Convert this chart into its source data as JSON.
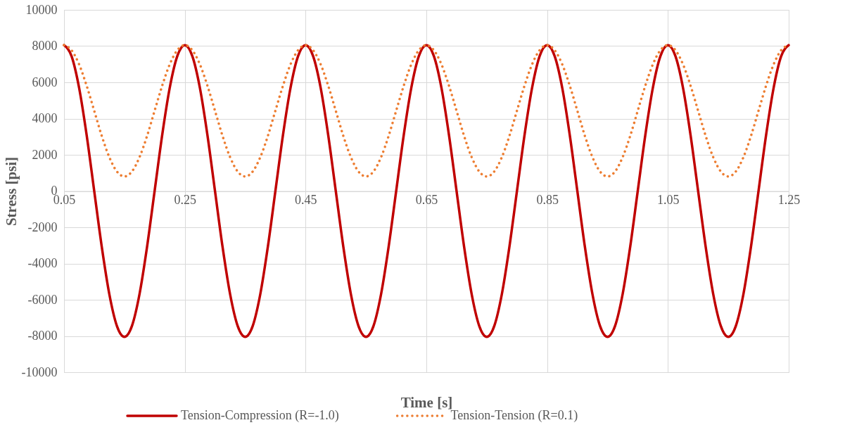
{
  "chart_data": {
    "type": "line",
    "xlabel": "Time [s]",
    "ylabel": "Stress [psi]",
    "x": [
      0.05,
      0.0625,
      0.075,
      0.0875,
      0.1,
      0.1125,
      0.125,
      0.1375,
      0.15,
      0.1625,
      0.175,
      0.1875,
      0.2,
      0.2125,
      0.225,
      0.2375,
      0.25,
      0.2625,
      0.275,
      0.2875,
      0.3,
      0.3125,
      0.325,
      0.3375,
      0.35,
      0.3625,
      0.375,
      0.3875,
      0.4,
      0.4125,
      0.425,
      0.4375,
      0.45,
      0.4625,
      0.475,
      0.4875,
      0.5,
      0.5125,
      0.525,
      0.5375,
      0.55,
      0.5625,
      0.575,
      0.5875,
      0.6,
      0.6125,
      0.625,
      0.6375,
      0.65,
      0.6625,
      0.675,
      0.6875,
      0.7,
      0.7125,
      0.725,
      0.7375,
      0.75,
      0.7625,
      0.775,
      0.7875,
      0.8,
      0.8125,
      0.825,
      0.8375,
      0.85,
      0.8625,
      0.875,
      0.8875,
      0.9,
      0.9125,
      0.925,
      0.9375,
      0.95,
      0.9625,
      0.975,
      0.9875,
      1.0,
      1.0125,
      1.025,
      1.0375,
      1.05,
      1.0625,
      1.075,
      1.0875,
      1.1,
      1.1125,
      1.125,
      1.1375,
      1.15,
      1.1625,
      1.175,
      1.1875,
      1.2,
      1.2125,
      1.225,
      1.2375,
      1.25
    ],
    "series": [
      {
        "name": "Tension-Compression (R=-1.0)",
        "color": "#c00000",
        "line_style": "solid",
        "values": [
          8050,
          7440,
          5690,
          3080,
          0,
          -3080,
          -5690,
          -7440,
          -8050,
          -7440,
          -5690,
          -3080,
          0,
          3080,
          5690,
          7440,
          8050,
          7440,
          5690,
          3080,
          0,
          -3080,
          -5690,
          -7440,
          -8050,
          -7440,
          -5690,
          -3080,
          0,
          3080,
          5690,
          7440,
          8050,
          7440,
          5690,
          3080,
          0,
          -3080,
          -5690,
          -7440,
          -8050,
          -7440,
          -5690,
          -3080,
          0,
          3080,
          5690,
          7440,
          8050,
          7440,
          5690,
          3080,
          0,
          -3080,
          -5690,
          -7440,
          -8050,
          -7440,
          -5690,
          -3080,
          0,
          3080,
          5690,
          7440,
          8050,
          7440,
          5690,
          3080,
          0,
          -3080,
          -5690,
          -7440,
          -8050,
          -7440,
          -5690,
          -3080,
          0,
          3080,
          5690,
          7440,
          8050,
          7440,
          5690,
          3080,
          0,
          -3080,
          -5690,
          -7440,
          -8050,
          -7440,
          -5690,
          -3080,
          0,
          3080,
          5690,
          7440,
          8050
        ]
      },
      {
        "name": "Tension-Tension (R=0.1)",
        "color": "#ed7d31",
        "line_style": "dotted",
        "values": [
          8050,
          7770,
          6990,
          5810,
          4430,
          3040,
          1870,
          1080,
          805,
          1080,
          1870,
          3040,
          4430,
          5810,
          6990,
          7770,
          8050,
          7770,
          6990,
          5810,
          4430,
          3040,
          1870,
          1080,
          805,
          1080,
          1870,
          3040,
          4430,
          5810,
          6990,
          7770,
          8050,
          7770,
          6990,
          5810,
          4430,
          3040,
          1870,
          1080,
          805,
          1080,
          1870,
          3040,
          4430,
          5810,
          6990,
          7770,
          8050,
          7770,
          6990,
          5810,
          4430,
          3040,
          1870,
          1080,
          805,
          1080,
          1870,
          3040,
          4430,
          5810,
          6990,
          7770,
          8050,
          7770,
          6990,
          5810,
          4430,
          3040,
          1870,
          1080,
          805,
          1080,
          1870,
          3040,
          4430,
          5810,
          6990,
          7770,
          8050,
          7770,
          6990,
          5810,
          4430,
          3040,
          1870,
          1080,
          805,
          1080,
          1870,
          3040,
          4430,
          5810,
          6990,
          7770,
          8050
        ]
      }
    ],
    "xlim": [
      0.05,
      1.25
    ],
    "xticks": [
      {
        "value": 0.05,
        "label": "0.05"
      },
      {
        "value": 0.25,
        "label": "0.25"
      },
      {
        "value": 0.45,
        "label": "0.45"
      },
      {
        "value": 0.65,
        "label": "0.65"
      },
      {
        "value": 0.85,
        "label": "0.85"
      },
      {
        "value": 1.05,
        "label": "1.05"
      },
      {
        "value": 1.25,
        "label": "1.25"
      }
    ],
    "ylim": [
      -10000,
      10000
    ],
    "yticks": [
      -10000,
      -8000,
      -6000,
      -4000,
      -2000,
      0,
      2000,
      4000,
      6000,
      8000,
      10000
    ],
    "grid": true,
    "legend": "bottom"
  }
}
